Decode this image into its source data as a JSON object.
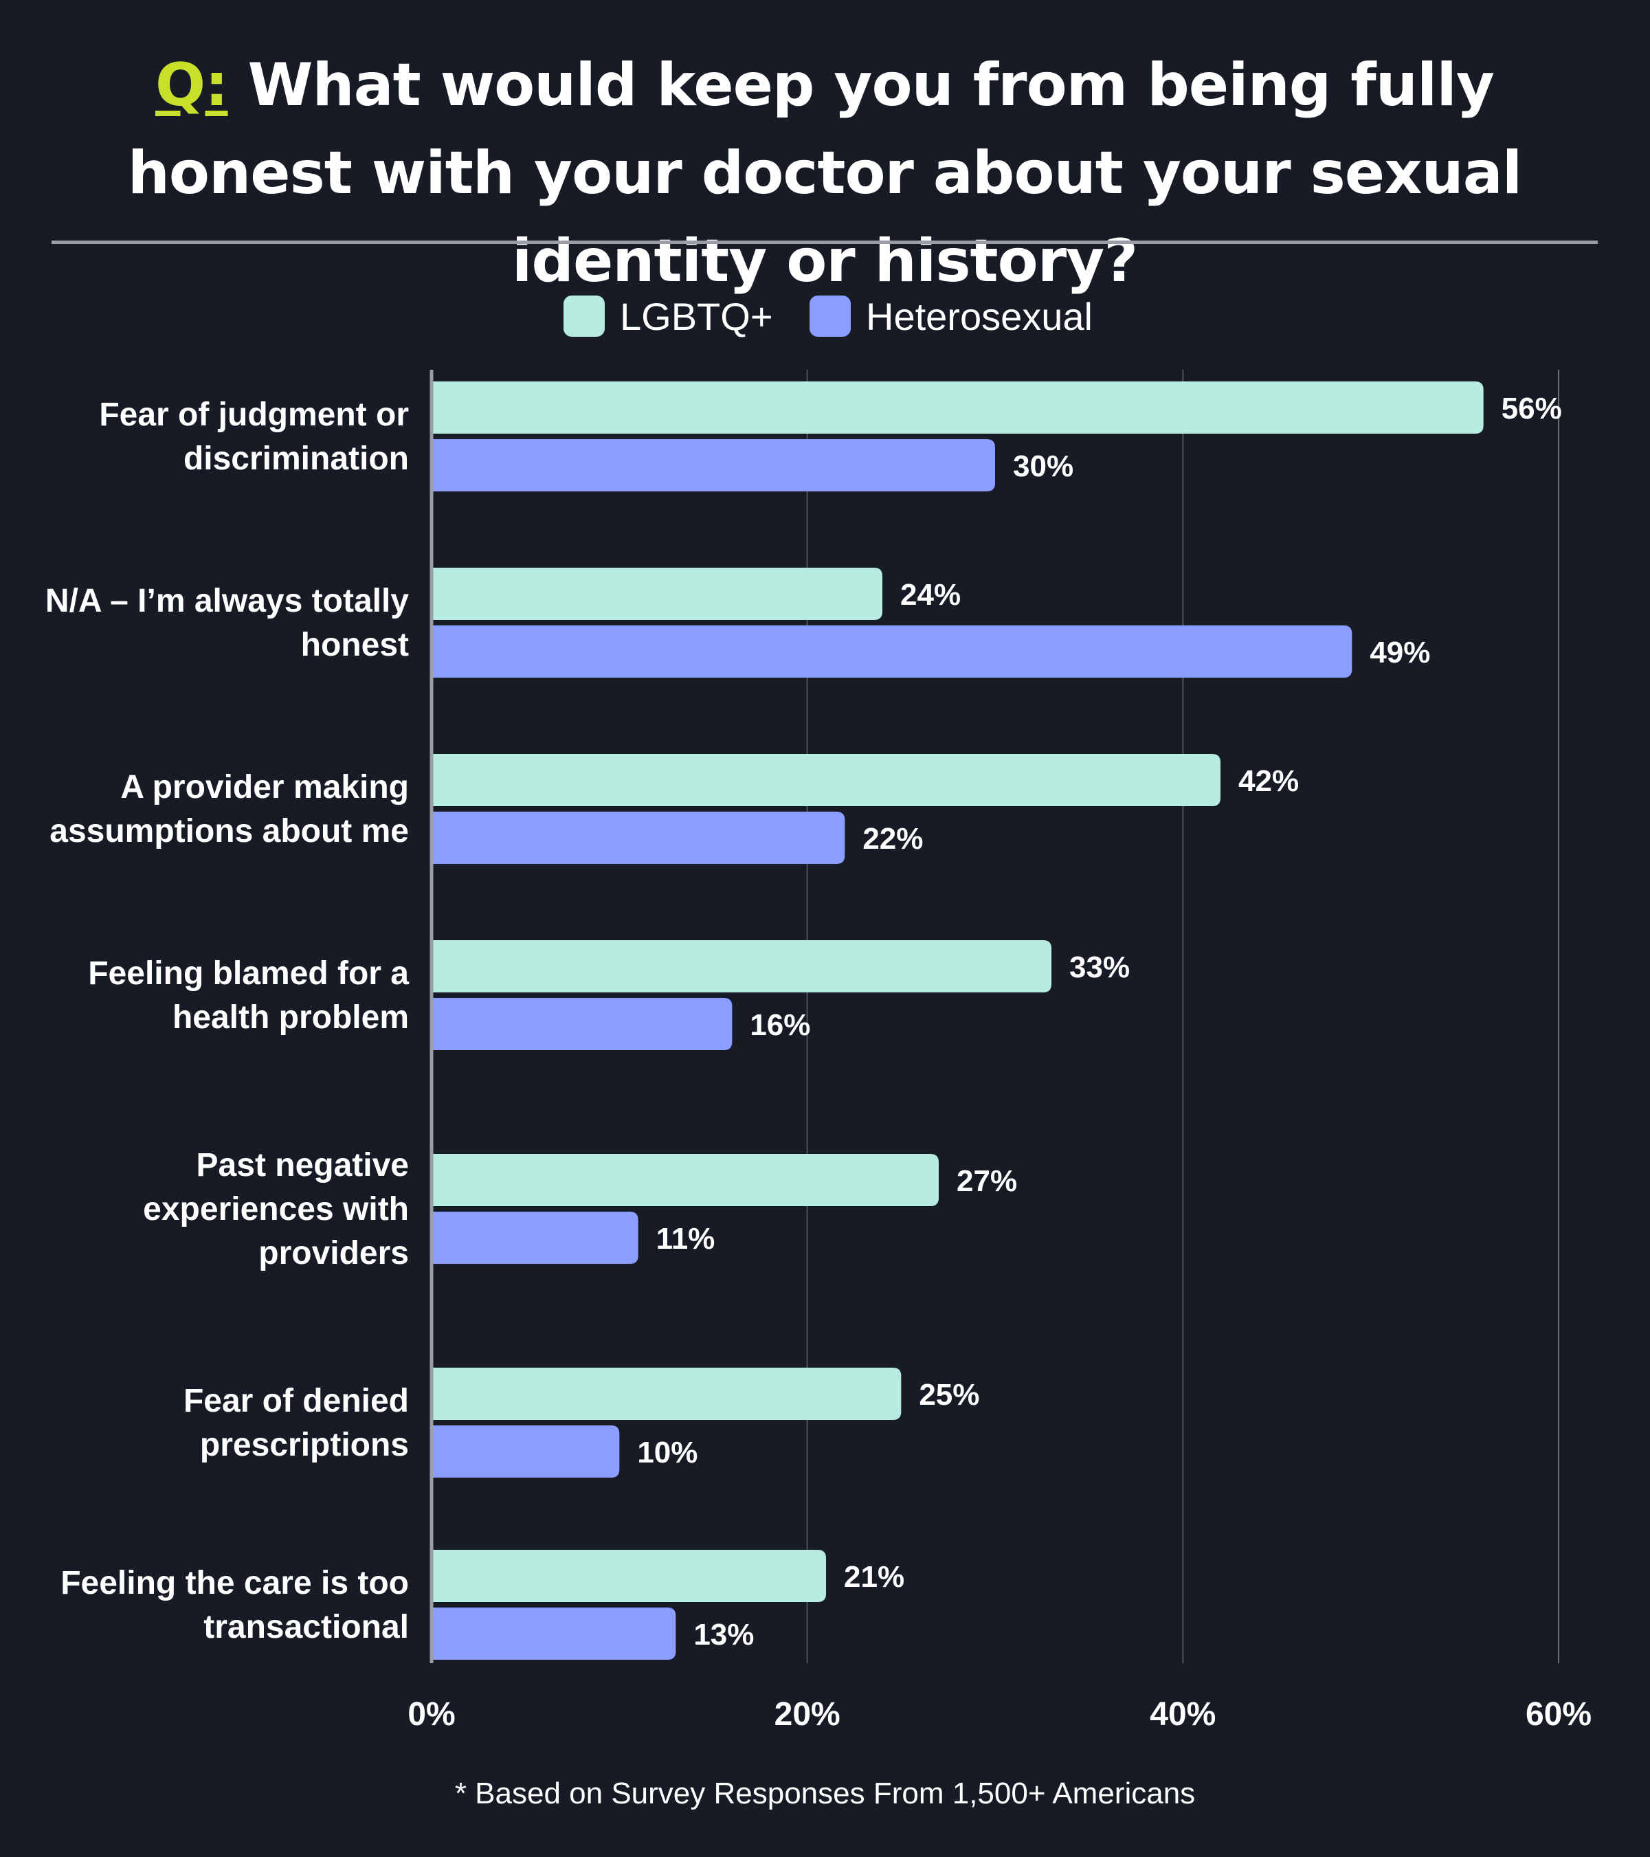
{
  "title": {
    "prefix": "Q:",
    "text": "What would keep you from being fully honest with your doctor about your sexual identity or history?"
  },
  "footnote": "* Based on Survey Responses From 1,500+ Americans",
  "colors": {
    "background": "#171b26",
    "lgbtq": "#b8ece0",
    "heterosexual": "#8b9dff",
    "accent": "#c9e02a",
    "gridline": "#4a4f5a",
    "axis": "#9a9ea6"
  },
  "chart_data": {
    "type": "bar",
    "orientation": "horizontal",
    "categories": [
      [
        "Fear of judgment or",
        "discrimination"
      ],
      [
        "N/A – I’m always totally",
        "honest"
      ],
      [
        "A provider making",
        "assumptions about me"
      ],
      [
        "Feeling blamed for a",
        "health problem"
      ],
      [
        "Past negative",
        "experiences with",
        "providers"
      ],
      [
        "Fear of denied",
        "prescriptions"
      ],
      [
        "Feeling the care is too",
        "transactional"
      ]
    ],
    "series": [
      {
        "name": "LGBTQ+",
        "color": "#b8ece0",
        "values": [
          56,
          24,
          42,
          33,
          27,
          25,
          21
        ]
      },
      {
        "name": "Heterosexual",
        "color": "#8b9dff",
        "values": [
          30,
          49,
          22,
          16,
          11,
          10,
          13
        ]
      }
    ],
    "value_suffix": "%",
    "xlim": [
      0,
      60
    ],
    "xticks": [
      0,
      20,
      40,
      60
    ],
    "xtick_labels": [
      "0%",
      "20%",
      "40%",
      "60%"
    ],
    "grid": true,
    "legend_position": "top-center"
  }
}
